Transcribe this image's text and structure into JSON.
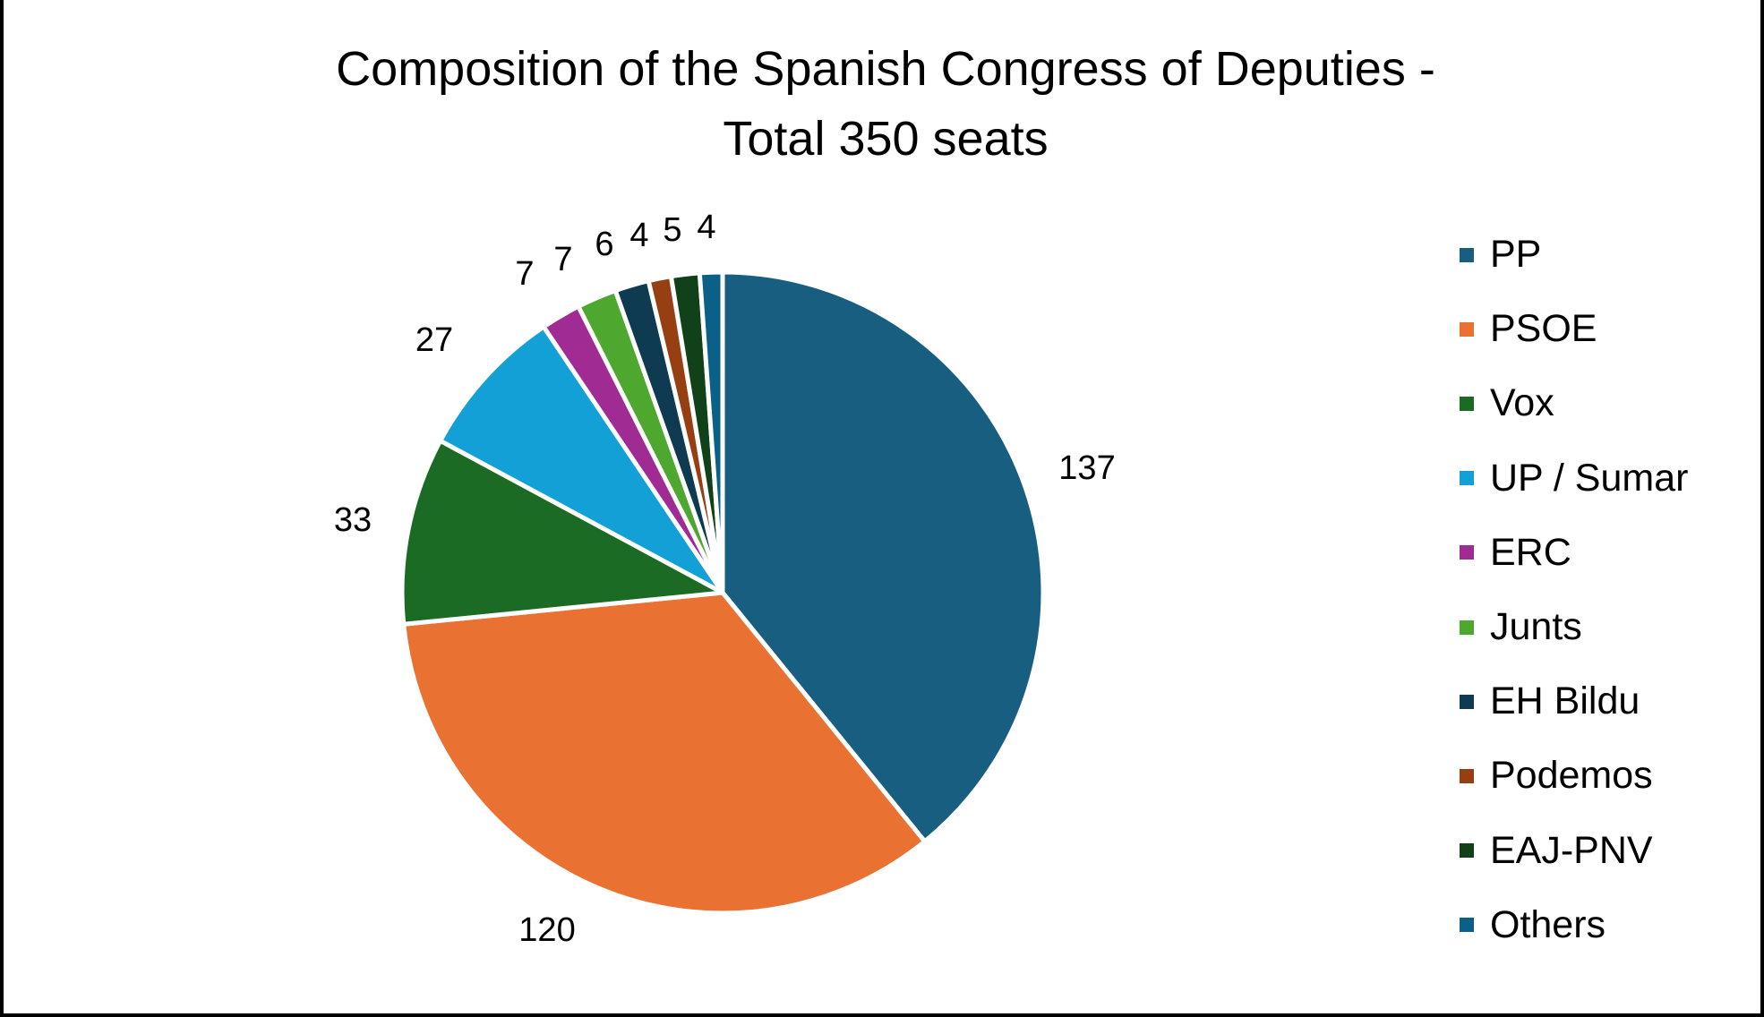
{
  "chart_data": {
    "type": "pie",
    "title": "Composition of the Spanish Congress of Deputies - Total 350 seats",
    "title_lines": [
      "Composition of the Spanish Congress of Deputies -",
      "Total 350 seats"
    ],
    "categories": [
      "PP",
      "PSOE",
      "Vox",
      "UP / Sumar",
      "ERC",
      "Junts",
      "EH Bildu",
      "Podemos",
      "EAJ-PNV",
      "Others"
    ],
    "values": [
      137,
      120,
      33,
      27,
      7,
      7,
      6,
      4,
      5,
      4
    ],
    "colors": [
      "#175e80",
      "#e97132",
      "#1b6b25",
      "#12a0d7",
      "#a02b93",
      "#4ea72e",
      "#0e3a52",
      "#963f12",
      "#114119",
      "#0b6087"
    ],
    "data_labels": [
      "137",
      "120",
      "33",
      "27",
      "7",
      "7",
      "6",
      "4",
      "5",
      "4"
    ],
    "total": 350,
    "legend_position": "right",
    "start_angle_deg": 0,
    "direction": "clockwise"
  },
  "legend": {
    "items": [
      {
        "label": "PP",
        "color": "#175e80"
      },
      {
        "label": "PSOE",
        "color": "#e97132"
      },
      {
        "label": "Vox",
        "color": "#1b6b25"
      },
      {
        "label": "UP / Sumar",
        "color": "#12a0d7"
      },
      {
        "label": "ERC",
        "color": "#a02b93"
      },
      {
        "label": "Junts",
        "color": "#4ea72e"
      },
      {
        "label": "EH Bildu",
        "color": "#0e3a52"
      },
      {
        "label": "Podemos",
        "color": "#963f12"
      },
      {
        "label": "EAJ-PNV",
        "color": "#114119"
      },
      {
        "label": "Others",
        "color": "#0b6087"
      }
    ]
  }
}
